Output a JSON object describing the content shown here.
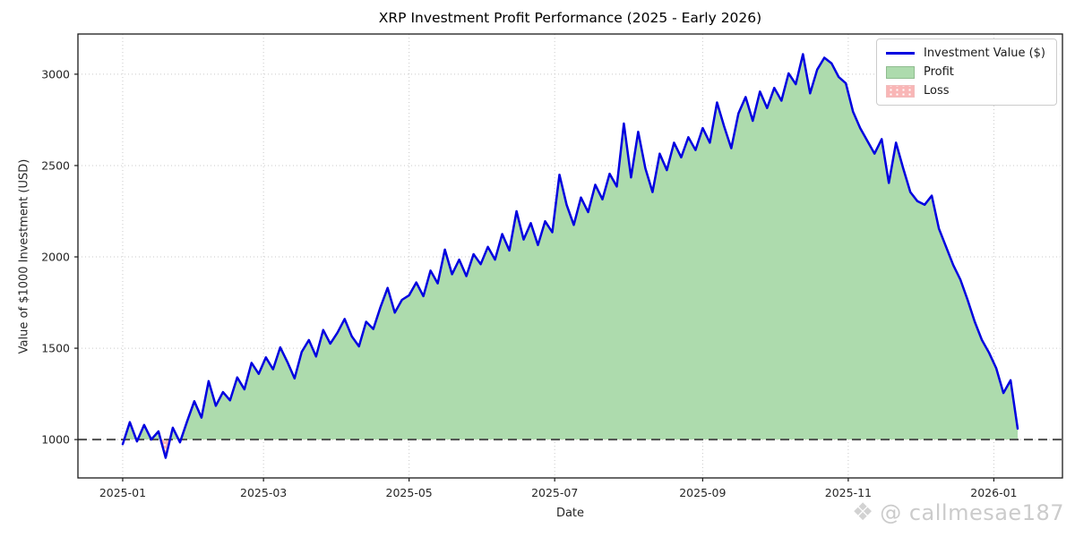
{
  "figure": {
    "title": "XRP Investment Profit Performance (2025 - Early 2026)",
    "watermark": {
      "icon": "❖",
      "text": "@ callmesae187"
    }
  },
  "chart_data": {
    "type": "line",
    "title": "XRP Investment Profit Performance (2025 - Early 2026)",
    "xlabel": "Date",
    "ylabel": "Value of $1000 Investment (USD)",
    "grid": true,
    "grid_style": "dotted",
    "legend_position": "upper right",
    "baseline": 1000,
    "baseline_style": "dashed gray horizontal line at initial investment value",
    "ylim": [
      790,
      3220
    ],
    "xlim_days": [
      -18.75,
      393.75
    ],
    "x_start_date": "2025-01-01",
    "x_end_date": "2026-01-11",
    "y_ticks": [
      1000,
      1500,
      2000,
      2500,
      3000
    ],
    "x_tick_labels": [
      "2025-01",
      "2025-03",
      "2025-05",
      "2025-07",
      "2025-09",
      "2025-11",
      "2026-01"
    ],
    "x_tick_days": [
      0,
      59,
      120,
      181,
      243,
      304,
      365
    ],
    "legend": [
      {
        "label": "Investment Value ($)",
        "type": "line",
        "color": "#0000e0",
        "border": "#0000e0"
      },
      {
        "label": "Profit",
        "type": "patch",
        "color": "#addbad",
        "border": "#8fbc8f"
      },
      {
        "label": "Loss",
        "type": "patch-hatched",
        "color": "#f9b6b6",
        "border": "#f2bcbc"
      }
    ],
    "series": [
      {
        "name": "Investment Value ($)",
        "color": "#0000e0",
        "x_step_days": 3,
        "x_days": [
          0,
          3,
          6,
          9,
          12,
          15,
          18,
          21,
          24,
          27,
          30,
          33,
          36,
          39,
          42,
          45,
          48,
          51,
          54,
          57,
          60,
          63,
          66,
          69,
          72,
          75,
          78,
          81,
          84,
          87,
          90,
          93,
          96,
          99,
          102,
          105,
          108,
          111,
          114,
          117,
          120,
          123,
          126,
          129,
          132,
          135,
          138,
          141,
          144,
          147,
          150,
          153,
          156,
          159,
          162,
          165,
          168,
          171,
          174,
          177,
          180,
          183,
          186,
          189,
          192,
          195,
          198,
          201,
          204,
          207,
          210,
          213,
          216,
          219,
          222,
          225,
          228,
          231,
          234,
          237,
          240,
          243,
          246,
          249,
          252,
          255,
          258,
          261,
          264,
          267,
          270,
          273,
          276,
          279,
          282,
          285,
          288,
          291,
          294,
          297,
          300,
          303,
          306,
          309,
          312,
          315,
          318,
          321,
          324,
          327,
          330,
          333,
          336,
          339,
          342,
          345,
          348,
          351,
          354,
          357,
          360,
          363,
          366,
          369,
          372,
          375
        ],
        "values": [
          975,
          1095,
          990,
          1080,
          1000,
          1045,
          900,
          1065,
          985,
          1100,
          1210,
          1120,
          1320,
          1185,
          1260,
          1215,
          1340,
          1275,
          1420,
          1360,
          1450,
          1385,
          1505,
          1425,
          1335,
          1480,
          1545,
          1455,
          1600,
          1525,
          1585,
          1660,
          1565,
          1510,
          1645,
          1605,
          1725,
          1830,
          1695,
          1765,
          1790,
          1860,
          1785,
          1925,
          1855,
          2040,
          1905,
          1985,
          1895,
          2015,
          1960,
          2055,
          1985,
          2125,
          2035,
          2250,
          2095,
          2185,
          2065,
          2195,
          2135,
          2450,
          2285,
          2175,
          2325,
          2245,
          2395,
          2315,
          2455,
          2385,
          2730,
          2435,
          2685,
          2485,
          2355,
          2565,
          2475,
          2625,
          2545,
          2655,
          2585,
          2705,
          2625,
          2845,
          2715,
          2595,
          2785,
          2875,
          2745,
          2905,
          2815,
          2925,
          2855,
          3005,
          2945,
          3110,
          2895,
          3025,
          3090,
          3060,
          2985,
          2950,
          2795,
          2705,
          2635,
          2565,
          2645,
          2405,
          2625,
          2485,
          2355,
          2305,
          2285,
          2335,
          2155,
          2055,
          1955,
          1875,
          1765,
          1645,
          1545,
          1475,
          1390,
          1255,
          1325,
          1060
        ]
      }
    ],
    "annotations": {
      "peak_value": 3110,
      "peak_date_approx": "2025-10-13",
      "min_value": 900,
      "min_date_approx": "2025-01-19",
      "final_value": 1060
    }
  },
  "colors": {
    "line": "#0000e0",
    "profit_fill": "#addbad",
    "loss_fill": "#ffb3b3",
    "baseline": "#4d4d4d",
    "grid": "#c9c9c9",
    "spine": "#1a1a1a",
    "tick_text": "#262626",
    "watermark": "#cbcbcb"
  }
}
